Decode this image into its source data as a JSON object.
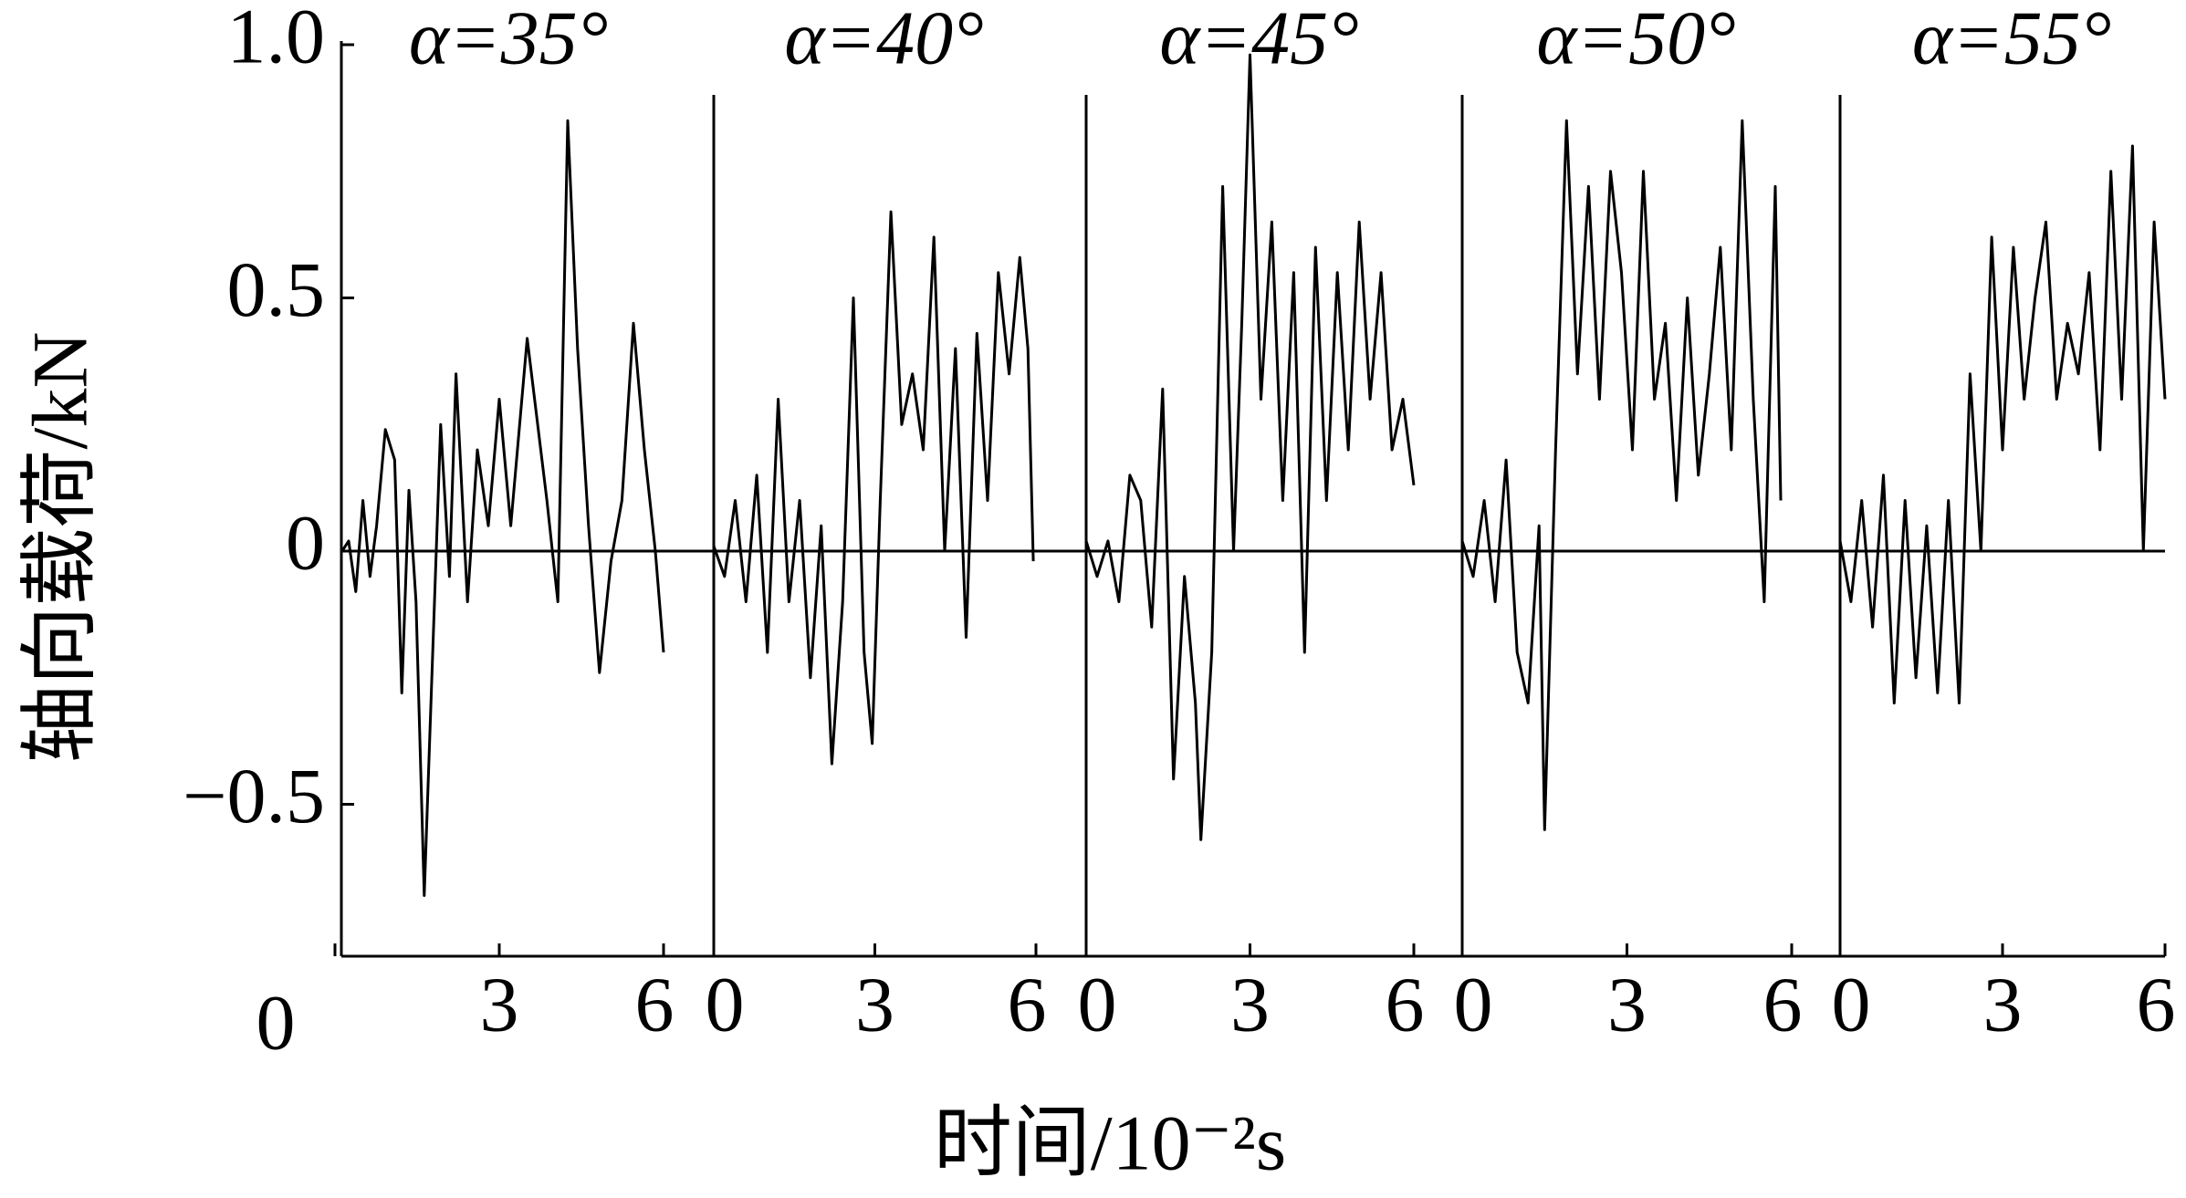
{
  "chart_data": [
    {
      "type": "line",
      "title": "α=35°",
      "ylabel": "轴向载荷/kN",
      "xlabel": "时间/10⁻²s",
      "xlim": [
        0,
        6
      ],
      "xticks": [
        0,
        3,
        6
      ],
      "ylim": [
        -0.8,
        1.0
      ],
      "yticks": [
        {
          "value": 1,
          "label": "1.0"
        },
        0.5,
        0,
        {
          "value": -0.5,
          "label": "−0.5"
        }
      ],
      "color": "#000000",
      "x": [
        0.13,
        0.25,
        0.38,
        0.51,
        0.64,
        0.76,
        0.92,
        1.09,
        1.22,
        1.35,
        1.48,
        1.63,
        1.73,
        1.93,
        2.09,
        2.21,
        2.42,
        2.6,
        2.8,
        3.0,
        3.21,
        3.51,
        3.87,
        4.07,
        4.25,
        4.43,
        4.63,
        4.83,
        5.04,
        5.24,
        5.45,
        5.65,
        5.85,
        6.0
      ],
      "values": [
        0,
        0.02,
        -0.08,
        0.1,
        -0.05,
        0.05,
        0.24,
        0.18,
        -0.28,
        0.12,
        -0.1,
        -0.68,
        -0.37,
        0.25,
        -0.05,
        0.35,
        -0.1,
        0.2,
        0.05,
        0.3,
        0.05,
        0.42,
        0.1,
        -0.1,
        0.85,
        0.4,
        0.05,
        -0.24,
        -0.02,
        0.1,
        0.45,
        0.2,
        0,
        -0.2
      ]
    },
    {
      "type": "line",
      "title": "α=40°",
      "xlim": [
        0,
        6
      ],
      "xticks": [
        0,
        3,
        6
      ],
      "ylim": [
        -0.8,
        1.0
      ],
      "color": "#000000",
      "x": [
        0,
        0.2,
        0.4,
        0.6,
        0.8,
        1.0,
        1.2,
        1.4,
        1.6,
        1.8,
        2.0,
        2.2,
        2.4,
        2.6,
        2.8,
        2.95,
        3.1,
        3.3,
        3.5,
        3.7,
        3.9,
        4.1,
        4.3,
        4.5,
        4.7,
        4.9,
        5.1,
        5.3,
        5.5,
        5.7,
        5.85,
        5.95
      ],
      "values": [
        0.01,
        -0.05,
        0.1,
        -0.1,
        0.15,
        -0.2,
        0.3,
        -0.1,
        0.1,
        -0.25,
        0.05,
        -0.42,
        -0.1,
        0.5,
        -0.2,
        -0.38,
        0.1,
        0.67,
        0.25,
        0.35,
        0.2,
        0.62,
        0,
        0.4,
        -0.17,
        0.43,
        0.1,
        0.55,
        0.35,
        0.58,
        0.4,
        -0.02
      ]
    },
    {
      "type": "line",
      "title": "α=45°",
      "xlim": [
        0,
        6
      ],
      "xticks": [
        0,
        3,
        6
      ],
      "ylim": [
        -0.8,
        1.0
      ],
      "color": "#000000",
      "x": [
        0,
        0.2,
        0.4,
        0.6,
        0.8,
        1.0,
        1.2,
        1.4,
        1.6,
        1.8,
        2.0,
        2.1,
        2.3,
        2.5,
        2.7,
        2.85,
        3.0,
        3.2,
        3.4,
        3.6,
        3.8,
        4.0,
        4.2,
        4.4,
        4.6,
        4.8,
        5.0,
        5.2,
        5.4,
        5.6,
        5.8,
        6.0
      ],
      "values": [
        0.02,
        -0.05,
        0.02,
        -0.1,
        0.15,
        0.1,
        -0.15,
        0.32,
        -0.45,
        -0.05,
        -0.3,
        -0.57,
        -0.2,
        0.72,
        0,
        0.45,
        0.98,
        0.3,
        0.65,
        0.1,
        0.55,
        -0.2,
        0.6,
        0.1,
        0.55,
        0.2,
        0.65,
        0.3,
        0.55,
        0.2,
        0.3,
        0.13
      ]
    },
    {
      "type": "line",
      "title": "α=50°",
      "xlim": [
        0,
        6
      ],
      "xticks": [
        0,
        3,
        6
      ],
      "ylim": [
        -0.8,
        1.0
      ],
      "color": "#000000",
      "x": [
        0,
        0.2,
        0.4,
        0.6,
        0.8,
        1.0,
        1.2,
        1.4,
        1.5,
        1.7,
        1.9,
        2.1,
        2.3,
        2.5,
        2.7,
        2.9,
        3.1,
        3.3,
        3.5,
        3.7,
        3.9,
        4.1,
        4.3,
        4.5,
        4.7,
        4.9,
        5.1,
        5.3,
        5.5,
        5.7,
        5.8
      ],
      "values": [
        0.02,
        -0.05,
        0.1,
        -0.1,
        0.18,
        -0.2,
        -0.3,
        0.05,
        -0.55,
        0.2,
        0.85,
        0.35,
        0.72,
        0.3,
        0.75,
        0.55,
        0.2,
        0.75,
        0.3,
        0.45,
        0.1,
        0.5,
        0.15,
        0.35,
        0.6,
        0.2,
        0.85,
        0.3,
        -0.1,
        0.72,
        0.1
      ]
    },
    {
      "type": "line",
      "title": "α=55°",
      "xlim": [
        0,
        6
      ],
      "xticks": [
        0,
        3,
        6
      ],
      "ylim": [
        -0.8,
        1.0
      ],
      "color": "#000000",
      "x": [
        0,
        0.2,
        0.4,
        0.6,
        0.8,
        1.0,
        1.2,
        1.4,
        1.6,
        1.8,
        2.0,
        2.2,
        2.4,
        2.6,
        2.8,
        3.0,
        3.2,
        3.4,
        3.6,
        3.8,
        4.0,
        4.2,
        4.4,
        4.6,
        4.8,
        5.0,
        5.2,
        5.4,
        5.6,
        5.8,
        6.0
      ],
      "values": [
        0.02,
        -0.1,
        0.1,
        -0.15,
        0.15,
        -0.3,
        0.1,
        -0.25,
        0.05,
        -0.28,
        0.1,
        -0.3,
        0.35,
        0,
        0.62,
        0.2,
        0.6,
        0.3,
        0.5,
        0.65,
        0.3,
        0.45,
        0.35,
        0.55,
        0.2,
        0.75,
        0.3,
        0.8,
        0,
        0.65,
        0.3
      ]
    }
  ]
}
